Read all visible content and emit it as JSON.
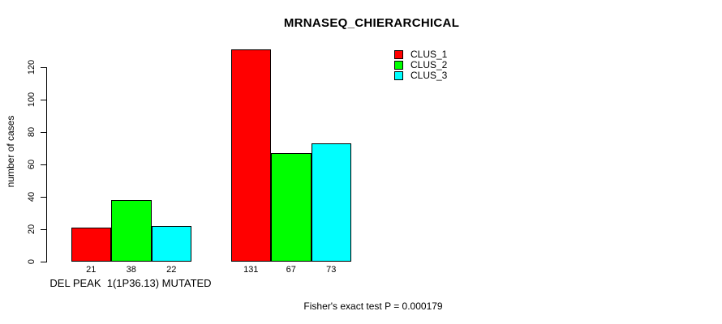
{
  "chart_data": {
    "type": "bar",
    "title": "MRNASEQ_CHIERARCHICAL",
    "ylabel": "number of cases",
    "xlabel": "DEL PEAK  1(1P36.13) MUTATED",
    "footnote": "Fisher's exact test P = 0.000179",
    "yticks": [
      0,
      20,
      40,
      60,
      80,
      100,
      120
    ],
    "ylim": [
      0,
      131
    ],
    "grid": false,
    "legend_position": "top-right",
    "series": [
      {
        "name": "CLUS_1",
        "color": "#ff0000",
        "values": [
          21,
          131
        ]
      },
      {
        "name": "CLUS_2",
        "color": "#00ff00",
        "values": [
          38,
          67
        ]
      },
      {
        "name": "CLUS_3",
        "color": "#00ffff",
        "values": [
          22,
          73
        ]
      }
    ],
    "bar_value_labels": [
      [
        21,
        38,
        22
      ],
      [
        131,
        67,
        73
      ]
    ]
  }
}
